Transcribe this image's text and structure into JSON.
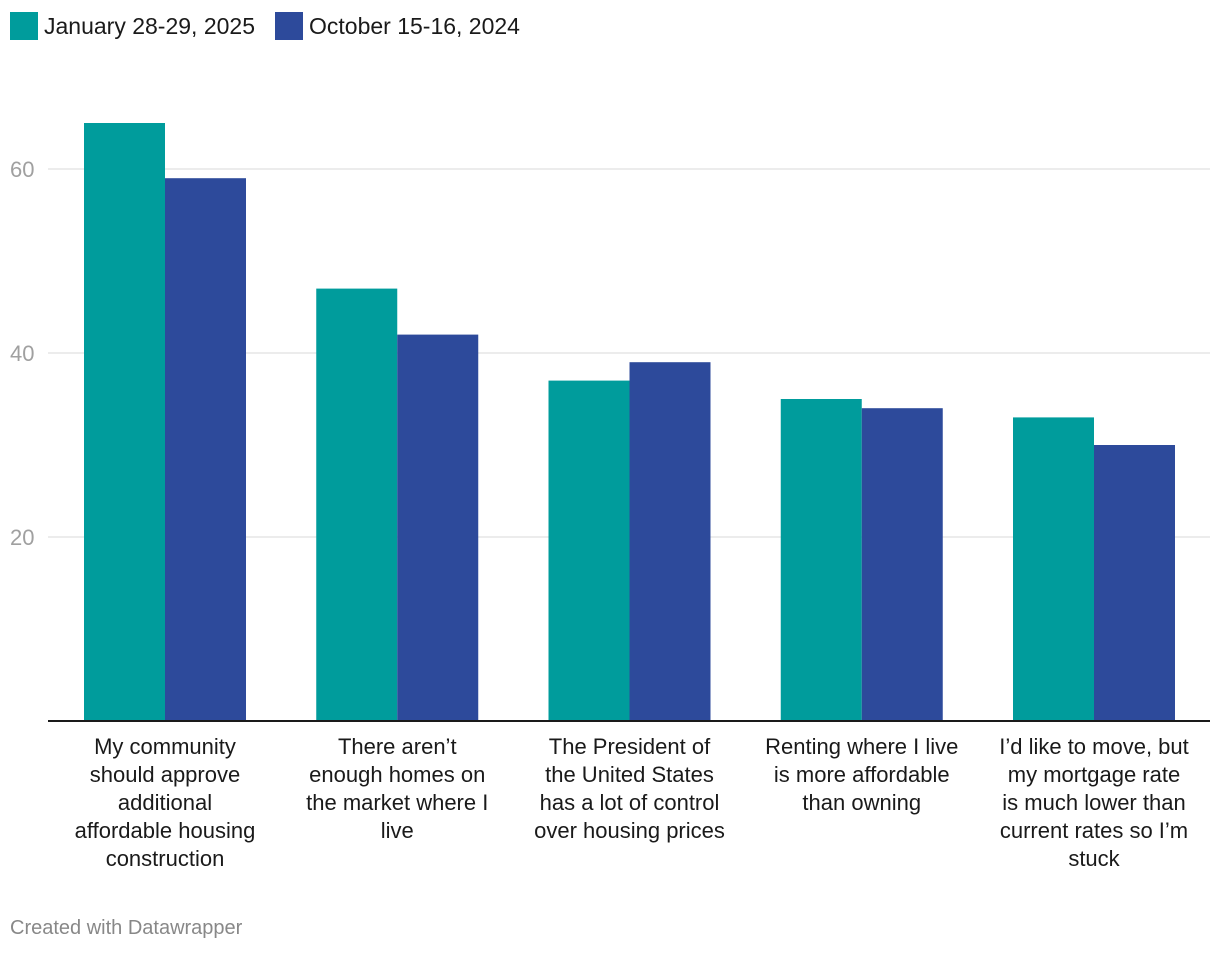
{
  "chart_data": {
    "type": "bar",
    "title": "",
    "xlabel": "",
    "ylabel": "",
    "ylim": [
      0,
      70
    ],
    "yticks": [
      20,
      40,
      60
    ],
    "grid": true,
    "legend_position": "top-left",
    "categories": [
      "My community should approve additional affordable housing construction",
      "There aren’t enough homes on the market where I live",
      "The President of the United States has a lot of control over housing prices",
      "Renting where I live is more affordable than owning",
      "I’d like to move, but my mortgage rate is much lower than current rates so I’m stuck"
    ],
    "category_lines": [
      [
        "My community",
        "should approve",
        "additional",
        "affordable housing",
        "construction"
      ],
      [
        "There aren’t",
        "enough homes on",
        "the market where I",
        "live"
      ],
      [
        "The President of",
        "the United States",
        "has a lot of control",
        "over housing prices"
      ],
      [
        "Renting where I live",
        "is more affordable",
        "than owning"
      ],
      [
        "I’d like to move, but",
        "my mortgage rate",
        "is much lower than",
        "current rates so I’m",
        "stuck"
      ]
    ],
    "series": [
      {
        "name": "January 28-29, 2025",
        "color": "#009c9c",
        "values": [
          65,
          47,
          37,
          35,
          33
        ]
      },
      {
        "name": "October 15-16, 2024",
        "color": "#2d4a9b",
        "values": [
          59,
          42,
          39,
          34,
          30
        ]
      }
    ]
  },
  "legend": {
    "items": [
      "January 28-29, 2025",
      "October 15-16, 2024"
    ]
  },
  "footer": {
    "credit": "Created with Datawrapper"
  },
  "colors": {
    "grid": "#e5e5e5",
    "axis": "#1a1a1a",
    "tick_label": "#a0a0a0",
    "text": "#1a1a1a"
  }
}
